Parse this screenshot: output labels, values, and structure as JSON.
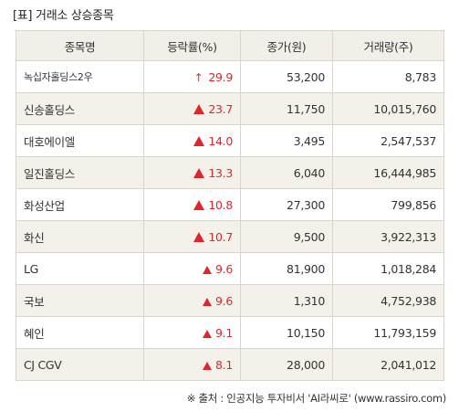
{
  "title": "[표] 거래소 상승종목",
  "headers": [
    "종목명",
    "등락률(%)",
    "종가(원)",
    "거래량(주)"
  ],
  "rows": [
    {
      "name": "녹십자홀딩스2우",
      "rate": "29.9",
      "price": "53,200",
      "volume": "8,783",
      "marker": "upper-limit-arrow-icon"
    },
    {
      "name": "신송홀딩스",
      "rate": "23.7",
      "price": "11,750",
      "volume": "10,015,760",
      "marker": "up-triangle-icon"
    },
    {
      "name": "대호에이엘",
      "rate": "14.0",
      "price": "3,495",
      "volume": "2,547,537",
      "marker": "up-triangle-icon"
    },
    {
      "name": "일진홀딩스",
      "rate": "13.3",
      "price": "6,040",
      "volume": "16,444,985",
      "marker": "up-triangle-icon"
    },
    {
      "name": "화성산업",
      "rate": "10.8",
      "price": "27,300",
      "volume": "799,856",
      "marker": "up-triangle-icon"
    },
    {
      "name": "화신",
      "rate": "10.7",
      "price": "9,500",
      "volume": "3,922,313",
      "marker": "up-triangle-icon"
    },
    {
      "name": "LG",
      "rate": "9.6",
      "price": "81,900",
      "volume": "1,018,284",
      "marker": "up-triangle-icon"
    },
    {
      "name": "국보",
      "rate": "9.6",
      "price": "1,310",
      "volume": "4,752,938",
      "marker": "up-triangle-icon"
    },
    {
      "name": "혜인",
      "rate": "9.1",
      "price": "10,150",
      "volume": "11,793,159",
      "marker": "up-triangle-icon"
    },
    {
      "name": "CJ CGV",
      "rate": "8.1",
      "price": "28,000",
      "volume": "2,041,012",
      "marker": "up-triangle-icon"
    }
  ],
  "source": "※ 출처 : 인공지능 투자비서 'AI라씨로' (www.rassiro.com)",
  "colors": {
    "up": "#e0262b",
    "header_bg": "#f2efe9",
    "border": "#d9d4cc",
    "stripe": "#f4f1eb"
  }
}
